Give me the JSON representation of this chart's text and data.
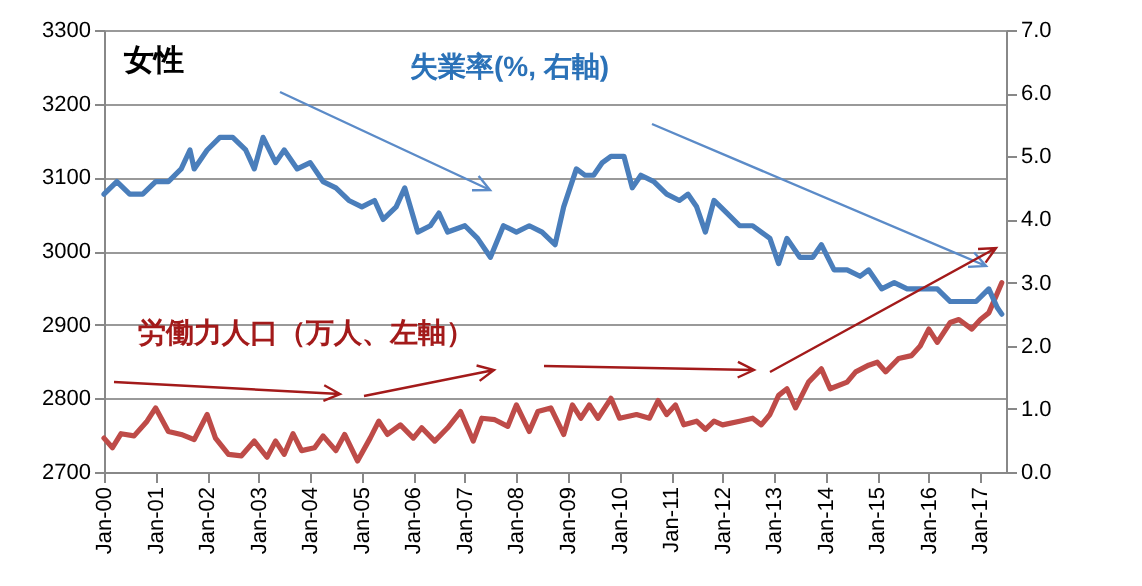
{
  "chart_data": {
    "type": "line",
    "title": "女性",
    "series": [
      {
        "name": "失業率(%, 右軸)",
        "color": "#4a7ebb",
        "axis": "y2",
        "x": [
          "2000-01",
          "2000-04",
          "2000-07",
          "2000-10",
          "2001-01",
          "2001-04",
          "2001-07",
          "2001-09",
          "2001-10",
          "2002-01",
          "2002-04",
          "2002-07",
          "2002-10",
          "2002-12",
          "2003-02",
          "2003-05",
          "2003-07",
          "2003-10",
          "2004-01",
          "2004-04",
          "2004-07",
          "2004-10",
          "2005-01",
          "2005-04",
          "2005-06",
          "2005-09",
          "2005-11",
          "2006-02",
          "2006-05",
          "2006-07",
          "2006-09",
          "2007-01",
          "2007-04",
          "2007-07",
          "2007-10",
          "2008-01",
          "2008-04",
          "2008-07",
          "2008-10",
          "2008-12",
          "2009-03",
          "2009-05",
          "2009-07",
          "2009-09",
          "2009-11",
          "2010-02",
          "2010-04",
          "2010-06",
          "2010-09",
          "2010-12",
          "2011-03",
          "2011-05",
          "2011-07",
          "2011-09",
          "2011-11",
          "2012-02",
          "2012-05",
          "2012-08",
          "2012-10",
          "2012-12",
          "2013-02",
          "2013-04",
          "2013-07",
          "2013-10",
          "2013-12",
          "2014-03",
          "2014-06",
          "2014-09",
          "2014-11",
          "2015-02",
          "2015-05",
          "2015-08",
          "2015-10",
          "2015-12",
          "2016-03",
          "2016-06",
          "2016-09",
          "2016-12",
          "2017-03",
          "2017-05",
          "2017-06"
        ],
        "values": [
          4.4,
          4.6,
          4.4,
          4.4,
          4.6,
          4.6,
          4.8,
          5.1,
          4.8,
          5.1,
          5.3,
          5.3,
          5.1,
          4.8,
          5.3,
          4.9,
          5.1,
          4.8,
          4.9,
          4.6,
          4.5,
          4.3,
          4.2,
          4.3,
          4.0,
          4.2,
          4.5,
          3.8,
          3.9,
          4.1,
          3.8,
          3.9,
          3.7,
          3.4,
          3.9,
          3.8,
          3.9,
          3.8,
          3.6,
          4.2,
          4.8,
          4.7,
          4.7,
          4.9,
          5.0,
          5.0,
          4.5,
          4.7,
          4.6,
          4.4,
          4.3,
          4.4,
          4.2,
          3.8,
          4.3,
          4.1,
          3.9,
          3.9,
          3.8,
          3.7,
          3.3,
          3.7,
          3.4,
          3.4,
          3.6,
          3.2,
          3.2,
          3.1,
          3.2,
          2.9,
          3.0,
          2.9,
          2.9,
          2.9,
          2.9,
          2.7,
          2.7,
          2.7,
          2.9,
          2.6,
          2.5
        ]
      },
      {
        "name": "労働力人口（万人、左軸）",
        "color": "#be4b48",
        "x": [
          "2000-01",
          "2000-03",
          "2000-05",
          "2000-08",
          "2000-11",
          "2001-01",
          "2001-04",
          "2001-07",
          "2001-10",
          "2002-01",
          "2002-03",
          "2002-06",
          "2002-09",
          "2002-12",
          "2003-03",
          "2003-05",
          "2003-07",
          "2003-09",
          "2003-11",
          "2004-02",
          "2004-04",
          "2004-07",
          "2004-09",
          "2004-12",
          "2005-03",
          "2005-05",
          "2005-07",
          "2005-10",
          "2006-01",
          "2006-03",
          "2006-06",
          "2006-09",
          "2006-12",
          "2007-03",
          "2007-05",
          "2007-08",
          "2007-11",
          "2008-01",
          "2008-04",
          "2008-06",
          "2008-09",
          "2008-12",
          "2009-02",
          "2009-04",
          "2009-06",
          "2009-08",
          "2009-11",
          "2010-01",
          "2010-05",
          "2010-08",
          "2010-10",
          "2010-12",
          "2011-02",
          "2011-04",
          "2011-07",
          "2011-09",
          "2011-11",
          "2012-01",
          "2012-05",
          "2012-08",
          "2012-10",
          "2012-12",
          "2013-02",
          "2013-04",
          "2013-06",
          "2013-09",
          "2013-12",
          "2014-02",
          "2014-06",
          "2014-08",
          "2014-11",
          "2015-01",
          "2015-03",
          "2015-06",
          "2015-09",
          "2015-11",
          "2016-01",
          "2016-03",
          "2016-06",
          "2016-08",
          "2016-11",
          "2017-01",
          "2017-03",
          "2017-05",
          "2017-06"
        ],
        "values": [
          2746,
          2733,
          2752,
          2749,
          2769,
          2787,
          2755,
          2751,
          2744,
          2778,
          2746,
          2724,
          2722,
          2742,
          2720,
          2742,
          2724,
          2752,
          2729,
          2733,
          2749,
          2729,
          2751,
          2715,
          2746,
          2769,
          2751,
          2764,
          2746,
          2760,
          2742,
          2760,
          2782,
          2742,
          2773,
          2771,
          2762,
          2791,
          2755,
          2782,
          2787,
          2751,
          2791,
          2773,
          2791,
          2773,
          2800,
          2773,
          2778,
          2773,
          2797,
          2778,
          2791,
          2764,
          2769,
          2758,
          2769,
          2764,
          2769,
          2773,
          2764,
          2778,
          2804,
          2813,
          2787,
          2822,
          2840,
          2813,
          2822,
          2836,
          2845,
          2849,
          2836,
          2854,
          2858,
          2871,
          2894,
          2876,
          2903,
          2907,
          2894,
          2907,
          2916,
          2943,
          2957
        ]
      }
    ],
    "xlim": [
      "2000-01",
      "2017-07"
    ],
    "xticks": [
      {
        "value": "2000-01",
        "label": "Jan-00"
      },
      {
        "value": "2001-01",
        "label": "Jan-01"
      },
      {
        "value": "2002-01",
        "label": "Jan-02"
      },
      {
        "value": "2003-01",
        "label": "Jan-03"
      },
      {
        "value": "2004-01",
        "label": "Jan-04"
      },
      {
        "value": "2005-01",
        "label": "Jan-05"
      },
      {
        "value": "2006-01",
        "label": "Jan-06"
      },
      {
        "value": "2007-01",
        "label": "Jan-07"
      },
      {
        "value": "2008-01",
        "label": "Jan-08"
      },
      {
        "value": "2009-01",
        "label": "Jan-09"
      },
      {
        "value": "2010-01",
        "label": "Jan-10"
      },
      {
        "value": "2011-01",
        "label": "Jan-11"
      },
      {
        "value": "2012-01",
        "label": "Jan-12"
      },
      {
        "value": "2013-01",
        "label": "Jan-13"
      },
      {
        "value": "2014-01",
        "label": "Jan-14"
      },
      {
        "value": "2015-01",
        "label": "Jan-15"
      },
      {
        "value": "2016-01",
        "label": "Jan-16"
      },
      {
        "value": "2017-01",
        "label": "Jan-17"
      }
    ],
    "ylim": [
      2700,
      3300
    ],
    "yticks": [
      2700,
      2800,
      2900,
      3000,
      3100,
      3200,
      3300
    ],
    "y2lim": [
      0,
      7
    ],
    "y2ticks": [
      {
        "value": 0,
        "label": "0.0"
      },
      {
        "value": 1,
        "label": "1.0"
      },
      {
        "value": 2,
        "label": "2.0"
      },
      {
        "value": 3,
        "label": "3.0"
      },
      {
        "value": 4,
        "label": "4.0"
      },
      {
        "value": 5,
        "label": "5.0"
      },
      {
        "value": 6,
        "label": "6.0"
      },
      {
        "value": 7,
        "label": "7.0"
      }
    ],
    "grid": "y"
  }
}
